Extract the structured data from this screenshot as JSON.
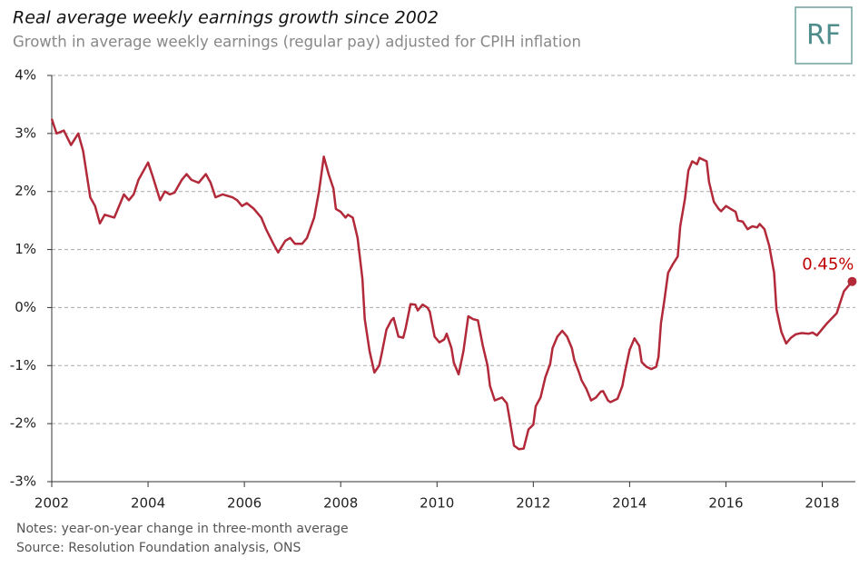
{
  "chart_data": {
    "type": "line",
    "title": "Real average weekly earnings growth since 2002",
    "subtitle": "Growth in average weekly earnings (regular pay) adjusted for CPIH inflation",
    "logo": "RF",
    "notes": "Notes: year-on-year change in three-month average",
    "source": "Source: Resolution Foundation analysis, ONS",
    "annotation": "0.45%",
    "xlim": [
      2002,
      2018.65
    ],
    "xticks": [
      2002,
      2004,
      2006,
      2008,
      2010,
      2012,
      2014,
      2016,
      2018
    ],
    "ylim": [
      -3,
      4
    ],
    "yticks": [
      {
        "value": -3,
        "label": "-3%"
      },
      {
        "value": -2,
        "label": "-2%"
      },
      {
        "value": -1,
        "label": "-1%"
      },
      {
        "value": 0,
        "label": "0%"
      },
      {
        "value": 1,
        "label": "1%"
      },
      {
        "value": 2,
        "label": "2%"
      },
      {
        "value": 3,
        "label": "3%"
      },
      {
        "value": 4,
        "label": "4%"
      }
    ],
    "grid": true,
    "x": [
      2002.0,
      2002.1,
      2002.25,
      2002.4,
      2002.55,
      2002.65,
      2002.8,
      2002.9,
      2003.0,
      2003.1,
      2003.3,
      2003.5,
      2003.6,
      2003.7,
      2003.8,
      2004.0,
      2004.1,
      2004.25,
      2004.35,
      2004.45,
      2004.55,
      2004.7,
      2004.8,
      2004.9,
      2005.05,
      2005.2,
      2005.3,
      2005.4,
      2005.55,
      2005.75,
      2005.85,
      2005.95,
      2006.05,
      2006.2,
      2006.35,
      2006.45,
      2006.6,
      2006.7,
      2006.85,
      2006.95,
      2007.05,
      2007.2,
      2007.3,
      2007.45,
      2007.55,
      2007.65,
      2007.75,
      2007.85,
      2007.9,
      2008.0,
      2008.1,
      2008.15,
      2008.25,
      2008.35,
      2008.45,
      2008.5,
      2008.6,
      2008.7,
      2008.8,
      2008.85,
      2008.95,
      2009.05,
      2009.1,
      2009.2,
      2009.3,
      2009.35,
      2009.45,
      2009.55,
      2009.6,
      2009.7,
      2009.8,
      2009.85,
      2009.95,
      2010.05,
      2010.15,
      2010.2,
      2010.3,
      2010.35,
      2010.45,
      2010.55,
      2010.65,
      2010.75,
      2010.85,
      2010.95,
      2011.05,
      2011.1,
      2011.2,
      2011.35,
      2011.45,
      2011.5,
      2011.6,
      2011.7,
      2011.8,
      2011.9,
      2012.0,
      2012.05,
      2012.15,
      2012.25,
      2012.35,
      2012.4,
      2012.5,
      2012.6,
      2012.7,
      2012.8,
      2012.85,
      2012.95,
      2013.0,
      2013.1,
      2013.2,
      2013.3,
      2013.4,
      2013.45,
      2013.55,
      2013.6,
      2013.75,
      2013.85,
      2013.9,
      2014.0,
      2014.1,
      2014.2,
      2014.25,
      2014.35,
      2014.45,
      2014.55,
      2014.6,
      2014.65,
      2014.72,
      2014.8,
      2014.9,
      2015.0,
      2015.05,
      2015.15,
      2015.22,
      2015.3,
      2015.4,
      2015.45,
      2015.6,
      2015.65,
      2015.75,
      2015.85,
      2015.9,
      2016.0,
      2016.1,
      2016.2,
      2016.25,
      2016.35,
      2016.45,
      2016.55,
      2016.65,
      2016.7,
      2016.8,
      2016.9,
      2017.0,
      2017.05,
      2017.15,
      2017.25,
      2017.35,
      2017.45,
      2017.57,
      2017.72,
      2017.8,
      2017.89,
      2018.1,
      2018.3,
      2018.45,
      2018.62
    ],
    "series": [
      {
        "name": "Real average weekly earnings growth",
        "color": "#b22a3a",
        "values": [
          3.25,
          3.0,
          3.05,
          2.8,
          3.0,
          2.7,
          1.9,
          1.75,
          1.45,
          1.6,
          1.55,
          1.95,
          1.85,
          1.95,
          2.2,
          2.5,
          2.25,
          1.85,
          2.0,
          1.95,
          1.98,
          2.2,
          2.3,
          2.2,
          2.15,
          2.3,
          2.15,
          1.9,
          1.95,
          1.9,
          1.85,
          1.75,
          1.8,
          1.7,
          1.55,
          1.35,
          1.1,
          0.95,
          1.15,
          1.2,
          1.1,
          1.1,
          1.2,
          1.55,
          2.0,
          2.6,
          2.3,
          2.05,
          1.7,
          1.65,
          1.55,
          1.6,
          1.55,
          1.2,
          0.5,
          -0.2,
          -0.75,
          -1.12,
          -1.0,
          -0.8,
          -0.38,
          -0.22,
          -0.18,
          -0.5,
          -0.52,
          -0.35,
          0.06,
          0.05,
          -0.05,
          0.05,
          0.0,
          -0.07,
          -0.5,
          -0.6,
          -0.55,
          -0.45,
          -0.7,
          -0.95,
          -1.15,
          -0.75,
          -0.15,
          -0.2,
          -0.22,
          -0.65,
          -1.0,
          -1.35,
          -1.6,
          -1.55,
          -1.65,
          -1.88,
          -2.38,
          -2.44,
          -2.43,
          -2.1,
          -2.02,
          -1.7,
          -1.55,
          -1.2,
          -0.97,
          -0.7,
          -0.5,
          -0.4,
          -0.5,
          -0.7,
          -0.9,
          -1.12,
          -1.25,
          -1.4,
          -1.6,
          -1.55,
          -1.45,
          -1.44,
          -1.6,
          -1.63,
          -1.57,
          -1.35,
          -1.12,
          -0.73,
          -0.53,
          -0.66,
          -0.94,
          -1.02,
          -1.06,
          -1.02,
          -0.85,
          -0.27,
          0.12,
          0.6,
          0.75,
          0.88,
          1.4,
          1.88,
          2.36,
          2.52,
          2.47,
          2.58,
          2.52,
          2.16,
          1.82,
          1.7,
          1.66,
          1.75,
          1.7,
          1.65,
          1.5,
          1.48,
          1.35,
          1.4,
          1.38,
          1.44,
          1.35,
          1.06,
          0.6,
          -0.03,
          -0.42,
          -0.62,
          -0.52,
          -0.46,
          -0.44,
          -0.45,
          -0.43,
          -0.48,
          -0.27,
          -0.1,
          0.28,
          0.45
        ]
      }
    ]
  }
}
